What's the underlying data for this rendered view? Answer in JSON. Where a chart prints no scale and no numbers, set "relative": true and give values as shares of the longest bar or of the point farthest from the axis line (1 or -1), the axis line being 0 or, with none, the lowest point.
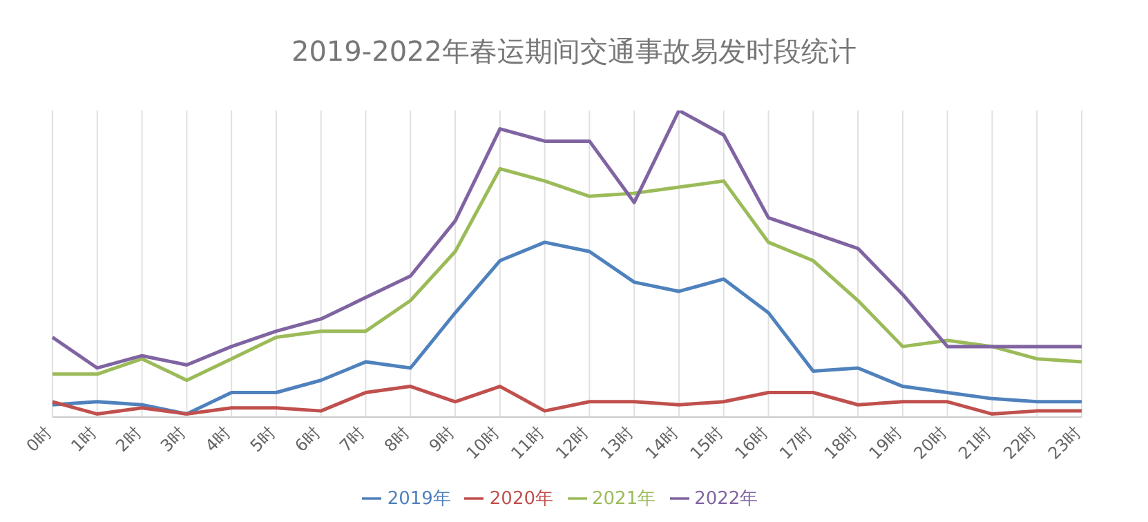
{
  "chart_data": {
    "type": "line",
    "title": "2019-2022年春运期间交通事故易发时段统计",
    "relative": true,
    "grid": "x",
    "legend": "bottom",
    "marker": "none",
    "line_style": "solid",
    "categories": [
      "0时",
      "1时",
      "2时",
      "3时",
      "4时",
      "5时",
      "6时",
      "7时",
      "8时",
      "9时",
      "10时",
      "11时",
      "12时",
      "13时",
      "14时",
      "15时",
      "16时",
      "17时",
      "18时",
      "19时",
      "20时",
      "21时",
      "22时",
      "23时"
    ],
    "series": [
      {
        "name": "2019年",
        "color": "#4f81bd",
        "values": [
          0.04,
          0.05,
          0.04,
          0.01,
          0.08,
          0.08,
          0.12,
          0.18,
          0.16,
          0.34,
          0.51,
          0.57,
          0.54,
          0.44,
          0.41,
          0.45,
          0.34,
          0.15,
          0.16,
          0.1,
          0.08,
          0.06,
          0.05,
          0.05
        ]
      },
      {
        "name": "2020年",
        "color": "#c0504d",
        "values": [
          0.05,
          0.01,
          0.03,
          0.01,
          0.03,
          0.03,
          0.02,
          0.08,
          0.1,
          0.05,
          0.1,
          0.02,
          0.05,
          0.05,
          0.04,
          0.05,
          0.08,
          0.08,
          0.04,
          0.05,
          0.05,
          0.01,
          0.02,
          0.02
        ]
      },
      {
        "name": "2021年",
        "color": "#9bbb59",
        "values": [
          0.14,
          0.14,
          0.19,
          0.12,
          0.19,
          0.26,
          0.28,
          0.28,
          0.38,
          0.54,
          0.81,
          0.77,
          0.72,
          0.73,
          0.75,
          0.77,
          0.57,
          0.51,
          0.38,
          0.23,
          0.25,
          0.23,
          0.19,
          0.18
        ]
      },
      {
        "name": "2022年",
        "color": "#8064a2",
        "values": [
          0.26,
          0.16,
          0.2,
          0.17,
          0.23,
          0.28,
          0.32,
          0.39,
          0.46,
          0.64,
          0.94,
          0.9,
          0.9,
          0.7,
          1,
          0.92,
          0.65,
          0.6,
          0.55,
          0.4,
          0.23,
          0.23,
          0.23,
          0.23
        ]
      }
    ]
  }
}
